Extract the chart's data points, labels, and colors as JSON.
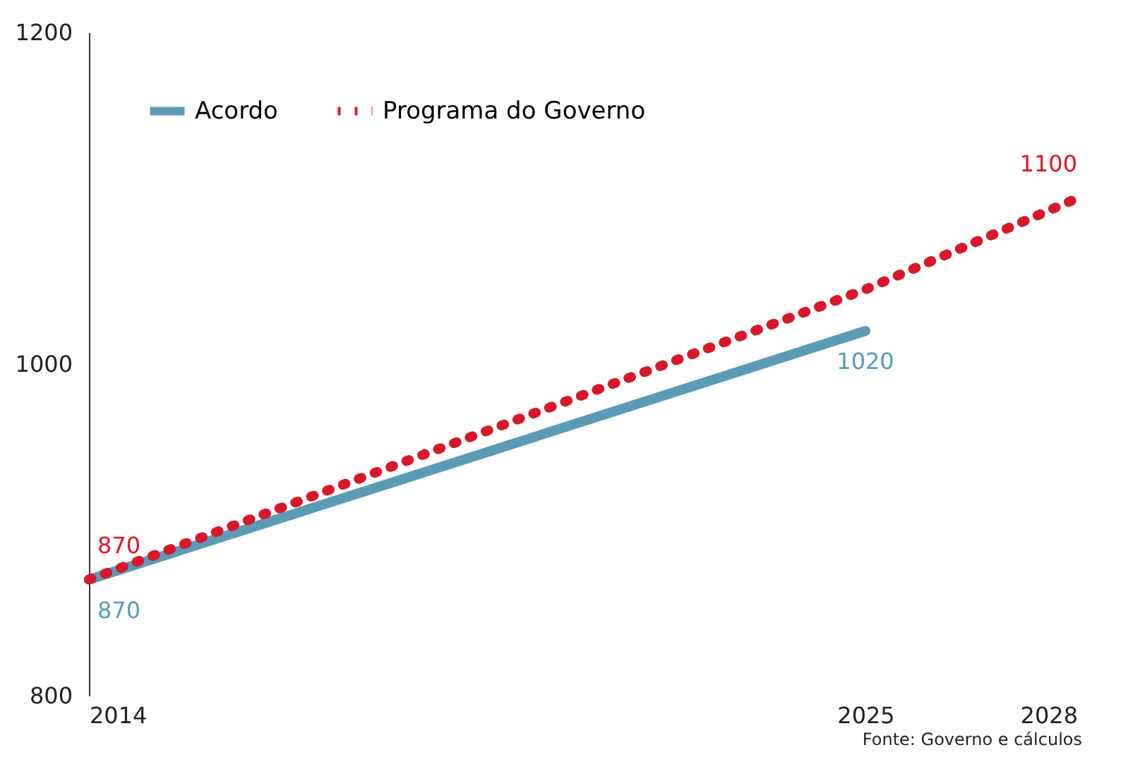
{
  "chart_data": {
    "type": "line",
    "xlim": [
      2014,
      2028
    ],
    "xticks": [
      2014,
      2025,
      2028
    ],
    "ylim": [
      800,
      1200
    ],
    "yticks": [
      800,
      {
        "value": 1000,
        "label": "1000"
      },
      {
        "value": 1200,
        "label": "1200"
      }
    ],
    "grid": false,
    "legend": "top left",
    "annotations": [
      "Fonte: Governo e cálculos"
    ],
    "series": [
      {
        "name": "Acordo",
        "color": "#5b9bb5",
        "line_style": "solid",
        "x": [
          2014,
          2025
        ],
        "values": [
          870,
          1020
        ],
        "value_labels": [
          "870",
          "1020"
        ]
      },
      {
        "name": "Programa do Governo",
        "color": "#d7182a",
        "line_style": "dotted",
        "x": [
          2014,
          2025,
          2028
        ],
        "values": [
          870,
          1045,
          1100
        ],
        "value_labels": [
          "870",
          null,
          "1100"
        ]
      }
    ]
  }
}
